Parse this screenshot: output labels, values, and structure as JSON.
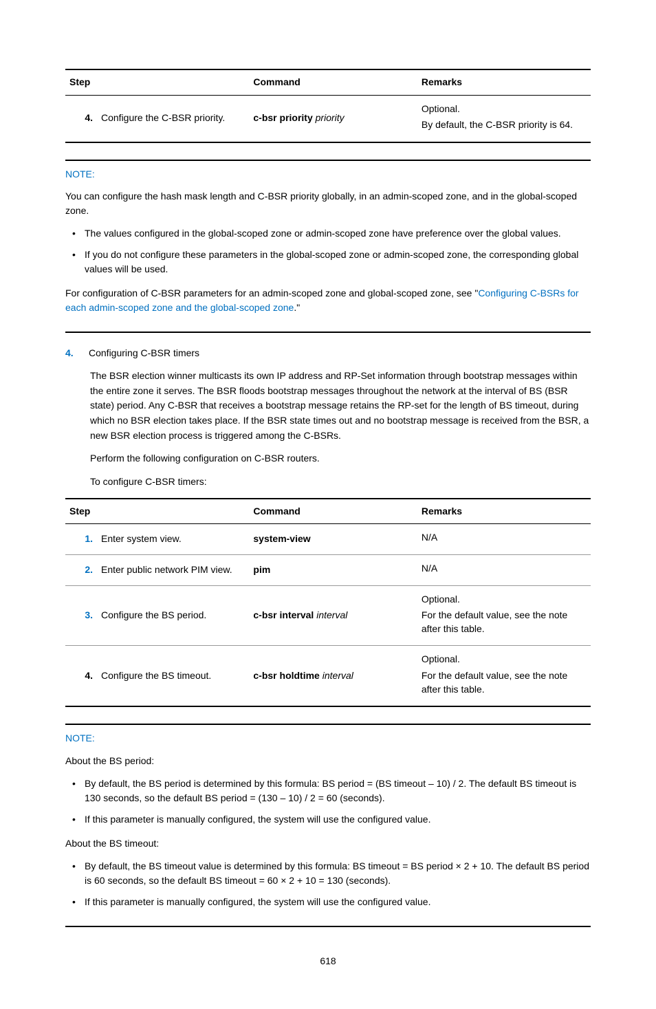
{
  "table1": {
    "headers": {
      "step": "Step",
      "command": "Command",
      "remarks": "Remarks"
    },
    "rows": [
      {
        "num": "4.",
        "step": "Configure the C-BSR priority.",
        "cmd_bold": "c-bsr priority",
        "cmd_italic": " priority",
        "remarks1": "Optional.",
        "remarks2": "By default, the C-BSR priority is 64."
      }
    ]
  },
  "note1": {
    "label": "NOTE:",
    "para1": "You can configure the hash mask length and C-BSR priority globally, in an admin-scoped zone, and in the global-scoped zone.",
    "bullets": [
      "The values configured in the global-scoped zone or admin-scoped zone have preference over the global values.",
      "If you do not configure these parameters in the global-scoped zone or admin-scoped zone, the corresponding global values will be used."
    ],
    "para2_pre": "For configuration of C-BSR parameters for an admin-scoped zone and global-scoped zone, see \"",
    "para2_link": "Configuring C-BSRs for each admin-scoped zone and the global-scoped zone",
    "para2_post": ".\""
  },
  "section4": {
    "num": "4.",
    "title": "Configuring C-BSR timers",
    "para1": "The BSR election winner multicasts its own IP address and RP-Set information through bootstrap messages within the entire zone it serves. The BSR floods bootstrap messages throughout the network at the interval of BS (BSR state) period. Any C-BSR that receives a bootstrap message retains the RP-set for the length of BS timeout, during which no BSR election takes place. If the BSR state times out and no bootstrap message is received from the BSR, a new BSR election process is triggered among the C-BSRs.",
    "para2": "Perform the following configuration on C-BSR routers.",
    "para3": "To configure C-BSR timers:"
  },
  "table2": {
    "headers": {
      "step": "Step",
      "command": "Command",
      "remarks": "Remarks"
    },
    "rows": [
      {
        "num": "1.",
        "num_style": "blue",
        "step": "Enter system view.",
        "cmd_bold": "system-view",
        "cmd_italic": "",
        "remarks": [
          "N/A"
        ]
      },
      {
        "num": "2.",
        "num_style": "blue",
        "step": "Enter public network PIM view.",
        "cmd_bold": "pim",
        "cmd_italic": "",
        "remarks": [
          "N/A"
        ]
      },
      {
        "num": "3.",
        "num_style": "blue",
        "step": "Configure the BS period.",
        "cmd_bold": "c-bsr interval",
        "cmd_italic": " interval",
        "remarks": [
          "Optional.",
          "For the default value, see the note after this table."
        ]
      },
      {
        "num": "4.",
        "num_style": "black",
        "step": "Configure the BS timeout.",
        "cmd_bold": "c-bsr holdtime",
        "cmd_italic": " interval",
        "remarks": [
          "Optional.",
          "For the default value, see the note after this table."
        ]
      }
    ]
  },
  "note2": {
    "label": "NOTE:",
    "sub1_title": "About the BS period:",
    "sub1_bullets": [
      "By default, the BS period is determined by this formula: BS period = (BS timeout – 10) / 2. The default BS timeout is 130 seconds, so the default BS period = (130 – 10) / 2 = 60 (seconds).",
      "If this parameter is manually configured, the system will use the configured value."
    ],
    "sub2_title": "About the BS timeout:",
    "sub2_bullets": [
      "By default, the BS timeout value is determined by this formula: BS timeout = BS period × 2 + 10. The default BS period is 60 seconds, so the default BS timeout = 60 × 2 + 10 = 130 (seconds).",
      "If this parameter is manually configured, the system will use the configured value."
    ]
  },
  "page_number": "618"
}
